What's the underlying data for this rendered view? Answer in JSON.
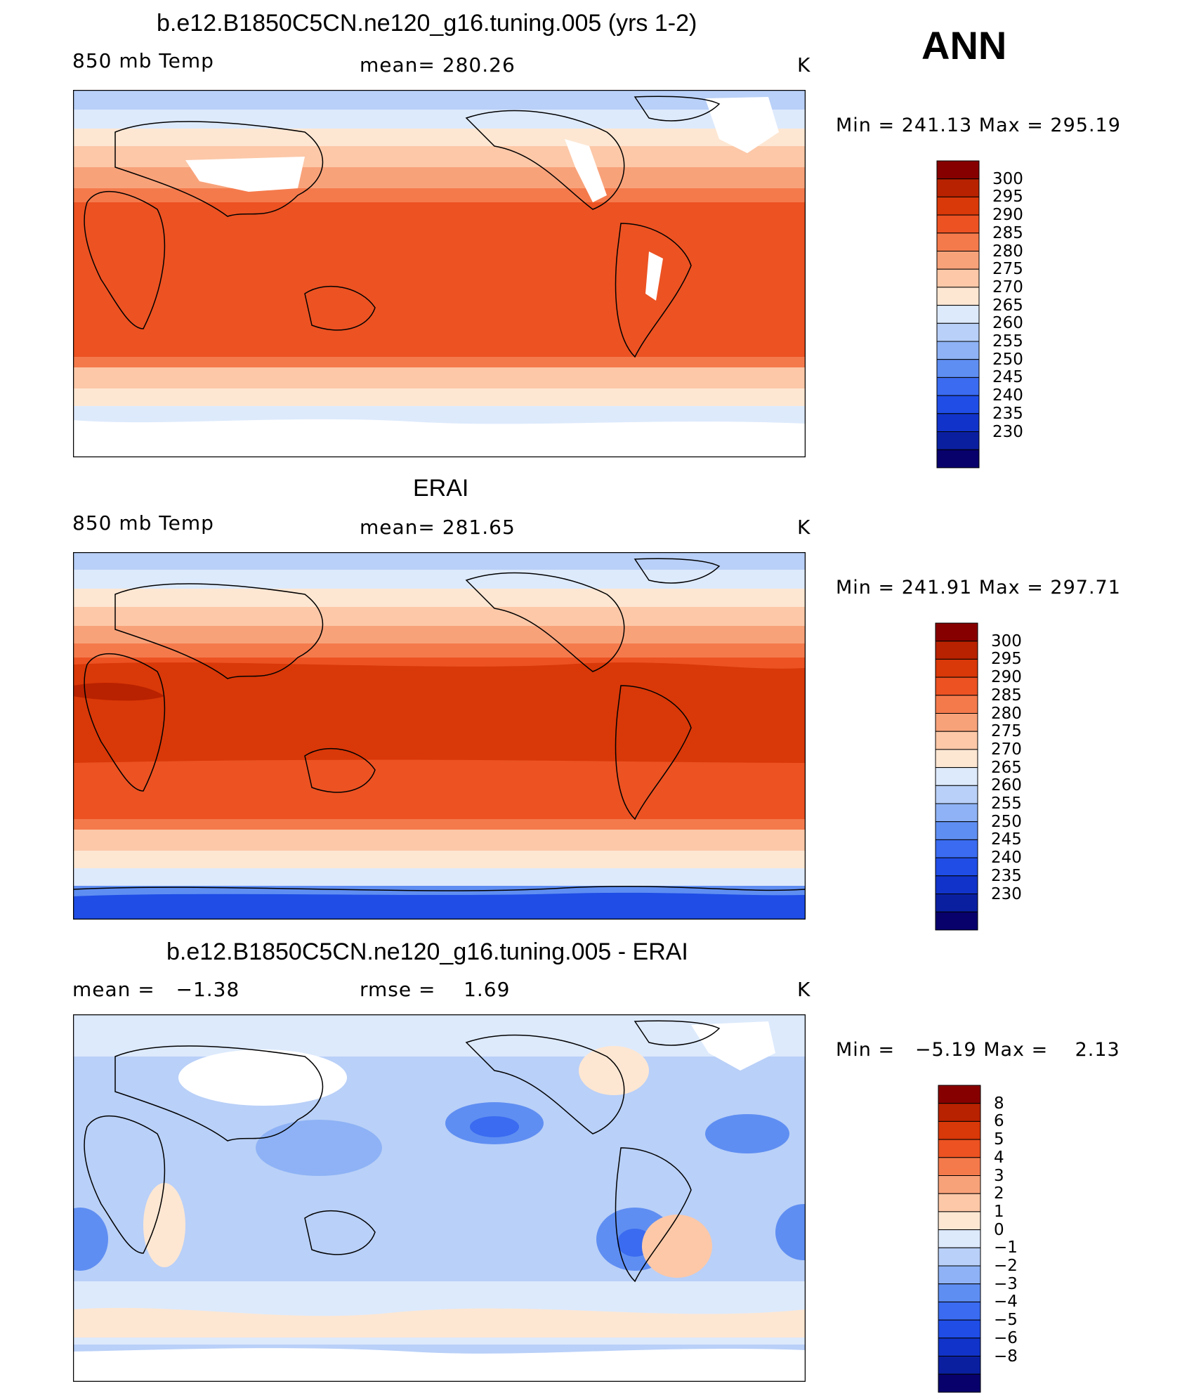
{
  "season": "ANN",
  "units": "K",
  "colors": {
    "temp_scale": [
      "#08006b",
      "#0a1fa0",
      "#1133c9",
      "#1f4de6",
      "#3a6bf0",
      "#5f8ef2",
      "#8eb2f5",
      "#b9d0f8",
      "#ddeafc",
      "#fde7d3",
      "#fcc8a8",
      "#f8a27a",
      "#f47a4c",
      "#ec5222",
      "#d93808",
      "#b82200",
      "#870000"
    ],
    "diff_scale": [
      "#08006b",
      "#0a1fa0",
      "#1133c9",
      "#1f4de6",
      "#3a6bf0",
      "#5f8ef2",
      "#8eb2f5",
      "#b9d0f8",
      "#ddeafc",
      "#fde7d3",
      "#fcc8a8",
      "#f8a27a",
      "#f47a4c",
      "#ec5222",
      "#d93808",
      "#b82200",
      "#870000"
    ],
    "land": "#ffffff",
    "coast": "#000000"
  },
  "panels": [
    {
      "id": "model",
      "title": "b.e12.B1850C5CN.ne120_g16.tuning.005 (yrs 1-2)",
      "variable": "850 mb Temp",
      "stat_label": "mean=",
      "stat_value": "280.26",
      "units": "K",
      "min_label": "Min =",
      "min_value": "241.13",
      "max_label": "Max =",
      "max_value": "295.19"
    },
    {
      "id": "obs",
      "title": "ERAI",
      "variable": "850 mb Temp",
      "stat_label": "mean=",
      "stat_value": "281.65",
      "units": "K",
      "min_label": "Min =",
      "min_value": "241.91",
      "max_label": "Max =",
      "max_value": "297.71"
    },
    {
      "id": "diff",
      "title": "b.e12.B1850C5CN.ne120_g16.tuning.005 - ERAI",
      "mean_label": "mean =",
      "mean_value": "−1.38",
      "rmse_label": "rmse =",
      "rmse_value": "1.69",
      "units": "K",
      "min_label": "Min =",
      "min_value": "−5.19",
      "max_label": "Max =",
      "max_value": "2.13"
    }
  ],
  "temp_levels": [
    "300",
    "295",
    "290",
    "285",
    "280",
    "275",
    "270",
    "265",
    "260",
    "255",
    "250",
    "245",
    "240",
    "235",
    "230"
  ],
  "diff_levels": [
    "8",
    "6",
    "5",
    "4",
    "3",
    "2",
    "1",
    "0",
    "−1",
    "−2",
    "−3",
    "−4",
    "−5",
    "−6",
    "−8"
  ]
}
